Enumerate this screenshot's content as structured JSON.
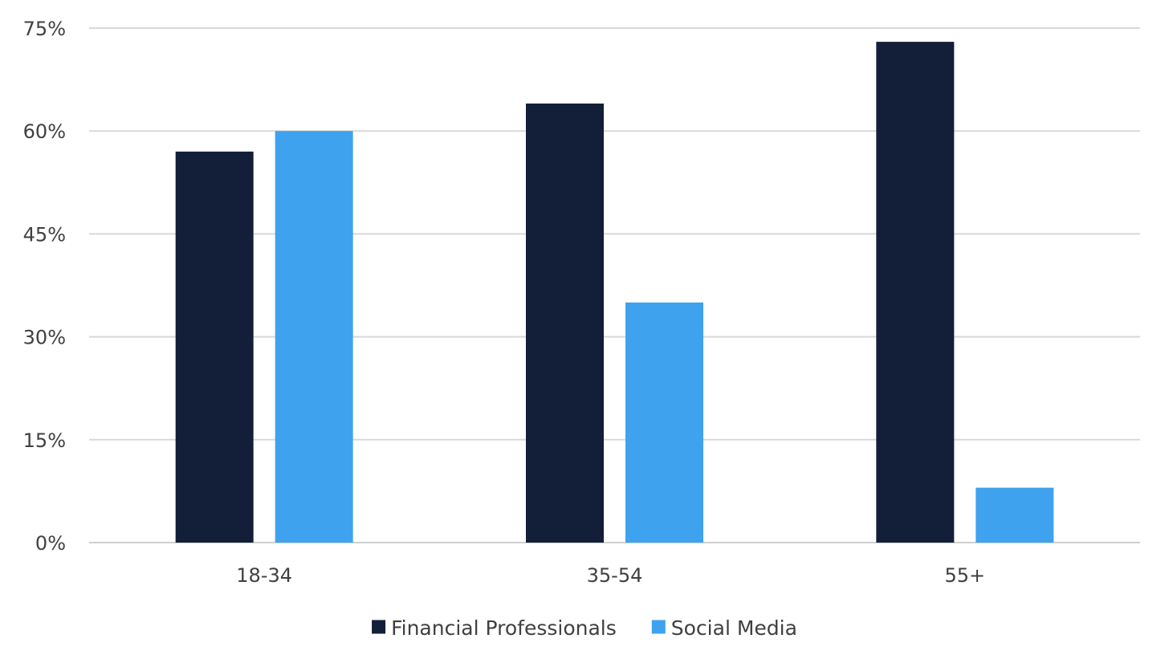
{
  "chart_data": {
    "type": "bar",
    "categories": [
      "18-34",
      "35-54",
      "55+"
    ],
    "series": [
      {
        "name": "Financial Professionals",
        "values": [
          57,
          64,
          73
        ],
        "color": "#131f38"
      },
      {
        "name": "Social Media",
        "values": [
          60,
          35,
          8
        ],
        "color": "#3fa2ee"
      }
    ],
    "y_ticks": [
      0,
      15,
      30,
      45,
      60,
      75
    ],
    "y_tick_labels": [
      "0%",
      "15%",
      "30%",
      "45%",
      "60%",
      "75%"
    ],
    "ylim": [
      0,
      75
    ],
    "grid": true,
    "legend_position": "bottom",
    "title": "",
    "xlabel": "",
    "ylabel": ""
  }
}
